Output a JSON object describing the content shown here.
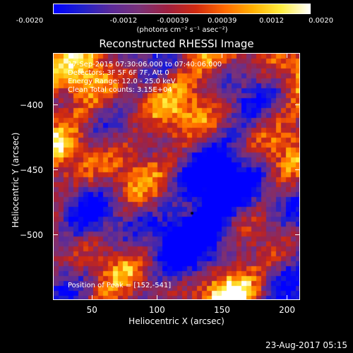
{
  "colorbar": {
    "tick_labels": [
      "-0.0020",
      "-0.0012",
      "-0.00039",
      "0.00039",
      "0.0012",
      "0.0020"
    ],
    "units": "(photons cm⁻² s⁻¹ asec⁻²)",
    "stops": [
      "#0000ff",
      "#2020cc",
      "#5a2a9a",
      "#7a3278",
      "#a02040",
      "#d02a10",
      "#ff6a00",
      "#ffb000",
      "#ffee40",
      "#ffffff"
    ]
  },
  "plot": {
    "title": "Reconstructed RHESSI Image",
    "info_lines": [
      "17-Sep-2015 07:30:06.000 to 07:40:06.000",
      "Detectors: 3F 5F 6F 7F, Att 0",
      "Energy Range: 12.0 - 25.0 keV",
      "Clean     Total counts: 3.15E+04"
    ],
    "peak_text": "Position of Peak = [152,-541]",
    "xlabel": "Heliocentric X (arcsec)",
    "ylabel": "Heliocentric Y (arcsec)"
  },
  "chart_data": {
    "type": "heatmap",
    "xlim": [
      20,
      210
    ],
    "ylim": [
      -550,
      -360
    ],
    "x_ticks": [
      50,
      100,
      150,
      200
    ],
    "y_ticks": [
      -400,
      -450,
      -500
    ],
    "peak": [
      152,
      -541
    ],
    "colorbar_range": [
      -0.002,
      0.002
    ]
  },
  "footer": {
    "timestamp": "23-Aug-2017 05:15"
  }
}
